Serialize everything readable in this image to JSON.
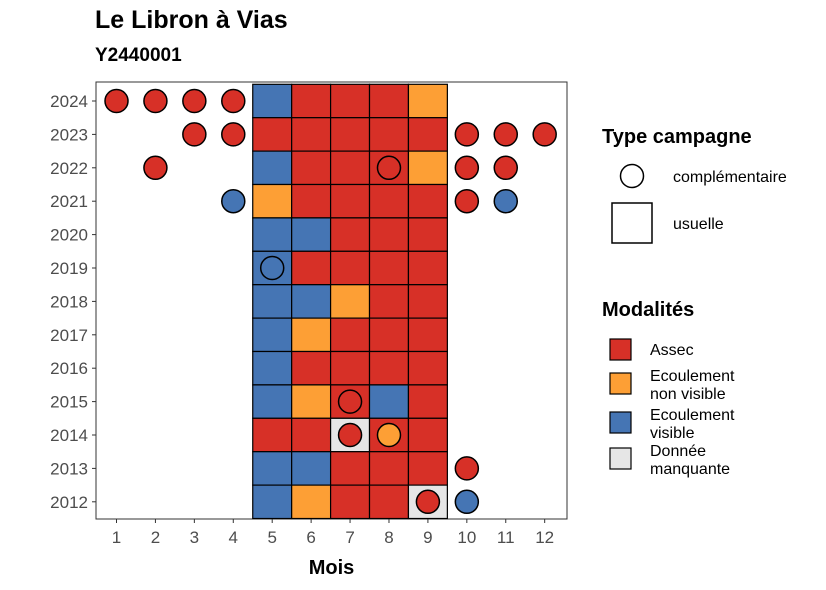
{
  "chart_data": {
    "type": "heatmap",
    "title": "Le Libron à Vias",
    "subtitle": "Y2440001",
    "xlabel": "Mois",
    "ylabel": "",
    "x_categories": [
      "1",
      "2",
      "3",
      "4",
      "5",
      "6",
      "7",
      "8",
      "9",
      "10",
      "11",
      "12"
    ],
    "y_categories": [
      "2012",
      "2013",
      "2014",
      "2015",
      "2016",
      "2017",
      "2018",
      "2019",
      "2020",
      "2021",
      "2022",
      "2023",
      "2024"
    ],
    "colors": {
      "Assec": "#d73027",
      "Ecoulement non visible": "#fd9f35",
      "Ecoulement visible": "#4575b4",
      "Donnée manquante": "#e6e6e6"
    },
    "usuelle": [
      {
        "year": 2024,
        "months": [
          5,
          6,
          7,
          8,
          9
        ],
        "values": [
          "Ecoulement visible",
          "Assec",
          "Assec",
          "Assec",
          "Ecoulement non visible"
        ]
      },
      {
        "year": 2023,
        "months": [
          5,
          6,
          7,
          8,
          9
        ],
        "values": [
          "Assec",
          "Assec",
          "Assec",
          "Assec",
          "Assec"
        ]
      },
      {
        "year": 2022,
        "months": [
          5,
          6,
          7,
          8,
          9
        ],
        "values": [
          "Ecoulement visible",
          "Assec",
          "Assec",
          "Assec",
          "Ecoulement non visible"
        ]
      },
      {
        "year": 2021,
        "months": [
          5,
          6,
          7,
          8,
          9
        ],
        "values": [
          "Ecoulement non visible",
          "Assec",
          "Assec",
          "Assec",
          "Assec"
        ]
      },
      {
        "year": 2020,
        "months": [
          5,
          6,
          7,
          8,
          9
        ],
        "values": [
          "Ecoulement visible",
          "Ecoulement visible",
          "Assec",
          "Assec",
          "Assec"
        ]
      },
      {
        "year": 2019,
        "months": [
          5,
          6,
          7,
          8,
          9
        ],
        "values": [
          "Ecoulement visible",
          "Assec",
          "Assec",
          "Assec",
          "Assec"
        ]
      },
      {
        "year": 2018,
        "months": [
          5,
          6,
          7,
          8,
          9
        ],
        "values": [
          "Ecoulement visible",
          "Ecoulement visible",
          "Ecoulement non visible",
          "Assec",
          "Assec"
        ]
      },
      {
        "year": 2017,
        "months": [
          5,
          6,
          7,
          8,
          9
        ],
        "values": [
          "Ecoulement visible",
          "Ecoulement non visible",
          "Assec",
          "Assec",
          "Assec"
        ]
      },
      {
        "year": 2016,
        "months": [
          5,
          6,
          7,
          8,
          9
        ],
        "values": [
          "Ecoulement visible",
          "Assec",
          "Assec",
          "Assec",
          "Assec"
        ]
      },
      {
        "year": 2015,
        "months": [
          5,
          6,
          7,
          8,
          9
        ],
        "values": [
          "Ecoulement visible",
          "Ecoulement non visible",
          "Assec",
          "Ecoulement visible",
          "Assec"
        ]
      },
      {
        "year": 2014,
        "months": [
          5,
          6,
          7,
          8,
          9
        ],
        "values": [
          "Assec",
          "Assec",
          "Donnée manquante",
          "Assec",
          "Assec"
        ]
      },
      {
        "year": 2013,
        "months": [
          5,
          6,
          7,
          8,
          9
        ],
        "values": [
          "Ecoulement visible",
          "Ecoulement visible",
          "Assec",
          "Assec",
          "Assec"
        ]
      },
      {
        "year": 2012,
        "months": [
          5,
          6,
          7,
          8,
          9
        ],
        "values": [
          "Ecoulement visible",
          "Ecoulement non visible",
          "Assec",
          "Assec",
          "Donnée manquante"
        ]
      }
    ],
    "complementaire": [
      {
        "year": 2024,
        "month": 1,
        "value": "Assec"
      },
      {
        "year": 2024,
        "month": 2,
        "value": "Assec"
      },
      {
        "year": 2024,
        "month": 3,
        "value": "Assec"
      },
      {
        "year": 2024,
        "month": 4,
        "value": "Assec"
      },
      {
        "year": 2023,
        "month": 3,
        "value": "Assec"
      },
      {
        "year": 2023,
        "month": 4,
        "value": "Assec"
      },
      {
        "year": 2023,
        "month": 10,
        "value": "Assec"
      },
      {
        "year": 2023,
        "month": 11,
        "value": "Assec"
      },
      {
        "year": 2023,
        "month": 12,
        "value": "Assec"
      },
      {
        "year": 2022,
        "month": 2,
        "value": "Assec"
      },
      {
        "year": 2022,
        "month": 8,
        "value": "Assec"
      },
      {
        "year": 2022,
        "month": 10,
        "value": "Assec"
      },
      {
        "year": 2022,
        "month": 11,
        "value": "Assec"
      },
      {
        "year": 2021,
        "month": 4,
        "value": "Ecoulement visible"
      },
      {
        "year": 2021,
        "month": 10,
        "value": "Assec"
      },
      {
        "year": 2021,
        "month": 11,
        "value": "Ecoulement visible"
      },
      {
        "year": 2019,
        "month": 5,
        "value": "Ecoulement visible"
      },
      {
        "year": 2015,
        "month": 7,
        "value": "Assec"
      },
      {
        "year": 2014,
        "month": 7,
        "value": "Assec"
      },
      {
        "year": 2014,
        "month": 8,
        "value": "Ecoulement non visible"
      },
      {
        "year": 2013,
        "month": 10,
        "value": "Assec"
      },
      {
        "year": 2012,
        "month": 9,
        "value": "Assec"
      },
      {
        "year": 2012,
        "month": 10,
        "value": "Ecoulement visible"
      }
    ],
    "legend_type": {
      "title": "Type campagne",
      "items": [
        {
          "shape": "circle",
          "label": "complémentaire"
        },
        {
          "shape": "square",
          "label": "usuelle"
        }
      ]
    },
    "legend_modalites": {
      "title": "Modalités",
      "items": [
        {
          "key": "Assec",
          "label": [
            "Assec"
          ]
        },
        {
          "key": "Ecoulement non visible",
          "label": [
            "Ecoulement",
            "non visible"
          ]
        },
        {
          "key": "Ecoulement visible",
          "label": [
            "Ecoulement",
            "visible"
          ]
        },
        {
          "key": "Donnée manquante",
          "label": [
            "Donnée",
            "manquante"
          ]
        }
      ]
    },
    "legend_position": "right",
    "grid": false
  }
}
